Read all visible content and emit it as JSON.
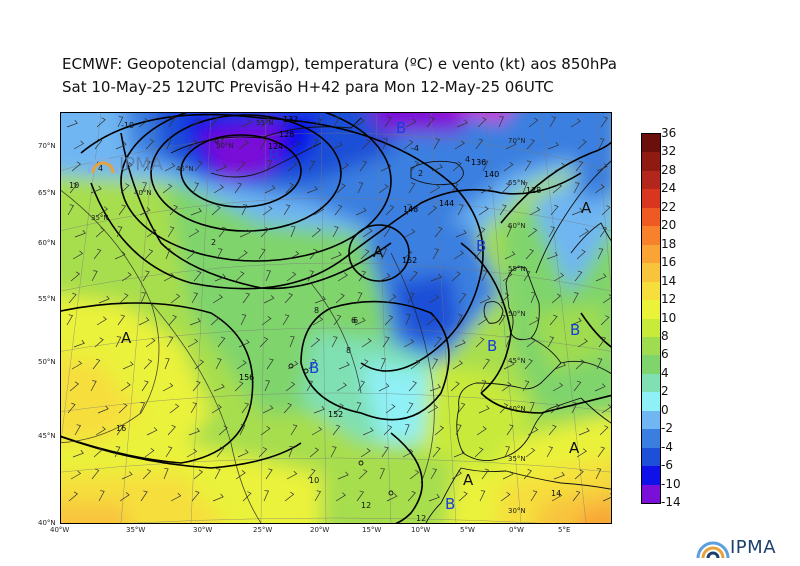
{
  "title_line1": "ECMWF:  Geopotencial (damgp), temperatura (ºC) e vento (kt) aos 850hPa",
  "title_line2": "Sat 10-May-25 12UTC Previsão H+42 para Mon 12-May-25 06UTC",
  "watermark": "IPMA",
  "logo_text": "IPMA",
  "latitude_labels": [
    "70°N",
    "65°N",
    "60°N",
    "55°N",
    "50°N",
    "45°N",
    "40°N"
  ],
  "longitude_labels": [
    "40°W",
    "35°W",
    "30°W",
    "25°W",
    "20°W",
    "15°W",
    "10°W",
    "5°W",
    "0°W",
    "5°E"
  ],
  "map_grid_labels": [
    "55°N",
    "50°N",
    "45°N",
    "40°N",
    "35°N",
    "70°N",
    "65°N",
    "60°N",
    "55°N",
    "50°N",
    "45°N",
    "40°N",
    "35°N",
    "30°N"
  ],
  "contour_labels": [
    "132",
    "128",
    "124",
    "136",
    "140",
    "144",
    "148",
    "152",
    "156",
    "152",
    "128"
  ],
  "isotherm_labels": [
    "-10",
    "-6",
    "-4",
    "2",
    "4",
    "6",
    "8",
    "10",
    "12",
    "14",
    "16",
    "12",
    "10",
    "8",
    "6",
    "4",
    "2"
  ],
  "pressure_centers": [
    "B",
    "B",
    "B",
    "B",
    "B",
    "B",
    "B",
    "A",
    "A",
    "A",
    "A",
    "A"
  ],
  "colorbar": {
    "labels": [
      "36",
      "32",
      "28",
      "24",
      "22",
      "20",
      "18",
      "16",
      "14",
      "12",
      "10",
      "8",
      "6",
      "4",
      "2",
      "0",
      "-2",
      "-4",
      "-6",
      "-10",
      "-14"
    ],
    "colors": [
      "#6b0f0c",
      "#8e1a12",
      "#b3261b",
      "#d9361f",
      "#ef5a23",
      "#f7822b",
      "#f9a435",
      "#f8c43c",
      "#f6df3c",
      "#eaf23a",
      "#c8ea3a",
      "#9fdc4f",
      "#7fd46c",
      "#7fe0b3",
      "#8ff0f5",
      "#6fb6f2",
      "#3a7fe0",
      "#1d4fd7",
      "#1010e8",
      "#7a10d8",
      "#d21ad8"
    ]
  }
}
